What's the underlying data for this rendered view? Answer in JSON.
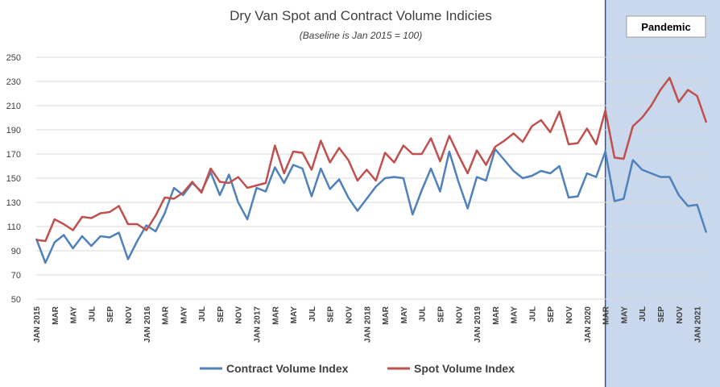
{
  "chart_data": {
    "type": "line",
    "title": "Dry Van Spot and Contract Volume Indicies",
    "subtitle": "(Baseline is Jan 2015 = 100)",
    "xlabel": "",
    "ylabel": "",
    "ylim": [
      50,
      250
    ],
    "yticks": [
      50,
      70,
      90,
      110,
      130,
      150,
      170,
      190,
      210,
      230,
      250
    ],
    "grid": true,
    "legend_position": "bottom",
    "x_tick_labels": [
      "JAN 2015",
      "MAR",
      "MAY",
      "JUL",
      "SEP",
      "NOV",
      "JAN 2016",
      "MAR",
      "MAY",
      "JUL",
      "SEP",
      "NOV",
      "JAN 2017",
      "MAR",
      "MAY",
      "JUL",
      "SEP",
      "NOV",
      "JAN 2018",
      "MAR",
      "MAY",
      "JUL",
      "SEP",
      "NOV",
      "JAN 2019",
      "MAR",
      "MAY",
      "JUL",
      "SEP",
      "NOV",
      "JAN 2020",
      "MAR",
      "MAY",
      "JUL",
      "SEP",
      "NOV",
      "JAN 2021"
    ],
    "annotation": {
      "label": "Pandemic",
      "start_month_index": 62,
      "color": "#c9d8ec",
      "border_color": "#2f5496"
    },
    "series": [
      {
        "name": "Contract Volume Index",
        "color": "#4f81bd",
        "values": [
          100,
          80,
          97,
          103,
          92,
          102,
          94,
          102,
          101,
          105,
          83,
          98,
          111,
          106,
          121,
          142,
          136,
          146,
          139,
          155,
          136,
          153,
          130,
          116,
          142,
          139,
          159,
          146,
          161,
          158,
          135,
          158,
          141,
          149,
          134,
          123,
          133,
          143,
          150,
          151,
          150,
          120,
          140,
          158,
          139,
          172,
          147,
          125,
          151,
          148,
          174,
          165,
          156,
          150,
          152,
          156,
          154,
          160,
          134,
          135,
          154,
          151,
          172,
          131,
          133,
          165,
          157,
          154,
          151,
          151,
          136,
          127,
          128,
          105
        ]
      },
      {
        "name": "Spot Volume Index",
        "color": "#c0504d",
        "values": [
          99,
          98,
          116,
          112,
          107,
          118,
          117,
          121,
          122,
          127,
          112,
          112,
          107,
          119,
          134,
          133,
          138,
          147,
          138,
          158,
          147,
          146,
          151,
          142,
          144,
          146,
          177,
          154,
          172,
          171,
          157,
          181,
          163,
          175,
          165,
          148,
          157,
          148,
          171,
          163,
          177,
          170,
          170,
          183,
          164,
          185,
          169,
          154,
          173,
          161,
          176,
          181,
          187,
          180,
          193,
          198,
          188,
          205,
          178,
          179,
          191,
          178,
          206,
          167,
          166,
          193,
          200,
          210,
          223,
          233,
          213,
          223,
          218,
          196
        ]
      }
    ]
  }
}
